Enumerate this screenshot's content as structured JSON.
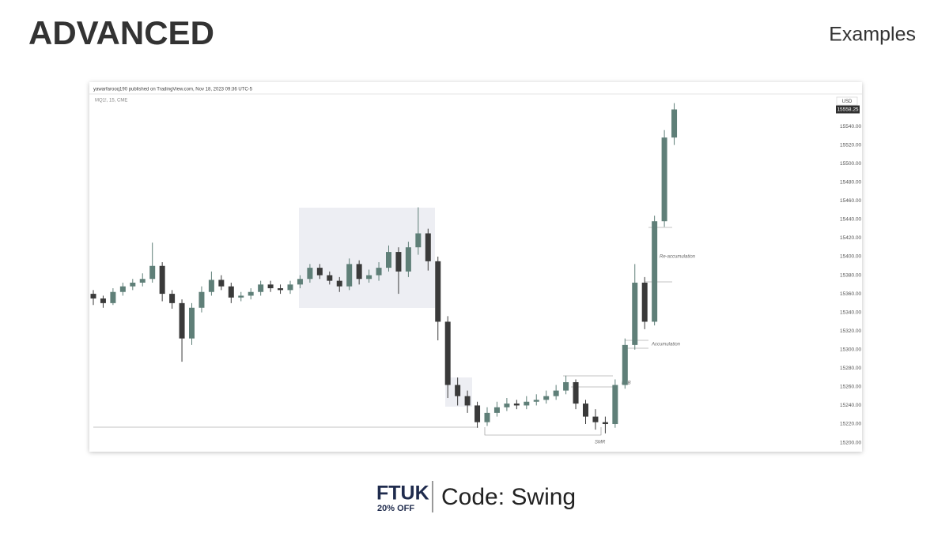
{
  "header": {
    "title": "ADVANCED",
    "section": "Examples"
  },
  "chart_data": {
    "type": "candlestick",
    "source": "yawarfarooq190 published on TradingView.com, Nov 18, 2023 09:36 UTC-5",
    "symbol": "MQ1!, 15, CME",
    "currency": "USD",
    "last_price": 15558.25,
    "up_color": "#5f7f78",
    "down_color": "#3a3a3a",
    "ylim": [
      15192,
      15574
    ],
    "yticks": [
      {
        "value": 15200,
        "label": "15200.00"
      },
      {
        "value": 15220,
        "label": "15220.00"
      },
      {
        "value": 15240,
        "label": "15240.00"
      },
      {
        "value": 15260,
        "label": "15260.00"
      },
      {
        "value": 15280,
        "label": "15280.00"
      },
      {
        "value": 15300,
        "label": "15300.00"
      },
      {
        "value": 15320,
        "label": "15320.00"
      },
      {
        "value": 15340,
        "label": "15340.00"
      },
      {
        "value": 15360,
        "label": "15360.00"
      },
      {
        "value": 15380,
        "label": "15380.00"
      },
      {
        "value": 15400,
        "label": "15400.00"
      },
      {
        "value": 15420,
        "label": "15420.00"
      },
      {
        "value": 15440,
        "label": "15440.00"
      },
      {
        "value": 15460,
        "label": "15460.00"
      },
      {
        "value": 15480,
        "label": "15480.00"
      },
      {
        "value": 15500,
        "label": "15500.00"
      },
      {
        "value": 15520,
        "label": "15520.00"
      },
      {
        "value": 15540,
        "label": "15540.00"
      }
    ],
    "open": [
      15360,
      15355,
      15350,
      15362,
      15368,
      15372,
      15376,
      15390,
      15360,
      15350,
      15312,
      15345,
      15362,
      15375,
      15368,
      15356,
      15358,
      15362,
      15370,
      15366,
      15364,
      15370,
      15376,
      15388,
      15380,
      15374,
      15368,
      15392,
      15376,
      15380,
      15388,
      15405,
      15384,
      15410,
      15425,
      15395,
      15330,
      15262,
      15250,
      15240,
      15222,
      15232,
      15238,
      15242,
      15240,
      15244,
      15246,
      15250,
      15256,
      15265,
      15242,
      15228,
      15222,
      15220,
      15262,
      15305,
      15372,
      15330,
      15438,
      15528
    ],
    "high": [
      15364,
      15358,
      15366,
      15372,
      15376,
      15382,
      15415,
      15394,
      15364,
      15354,
      15350,
      15368,
      15384,
      15380,
      15372,
      15362,
      15366,
      15374,
      15374,
      15370,
      15374,
      15380,
      15392,
      15392,
      15384,
      15378,
      15398,
      15396,
      15386,
      15394,
      15412,
      15410,
      15416,
      15453,
      15430,
      15400,
      15336,
      15270,
      15256,
      15244,
      15238,
      15244,
      15248,
      15246,
      15250,
      15252,
      15256,
      15262,
      15272,
      15268,
      15246,
      15236,
      15228,
      15268,
      15312,
      15392,
      15378,
      15444,
      15536,
      15565
    ],
    "low": [
      15348,
      15345,
      15348,
      15358,
      15364,
      15368,
      15372,
      15352,
      15344,
      15287,
      15305,
      15340,
      15358,
      15364,
      15350,
      15352,
      15354,
      15358,
      15362,
      15360,
      15360,
      15366,
      15372,
      15376,
      15370,
      15362,
      15364,
      15370,
      15372,
      15374,
      15384,
      15360,
      15378,
      15402,
      15385,
      15310,
      15248,
      15240,
      15232,
      15216,
      15218,
      15228,
      15234,
      15236,
      15236,
      15240,
      15242,
      15246,
      15252,
      15236,
      15220,
      15214,
      15210,
      15216,
      15258,
      15300,
      15322,
      15326,
      15432,
      15520
    ],
    "close": [
      15355,
      15350,
      15362,
      15368,
      15372,
      15376,
      15390,
      15360,
      15350,
      15312,
      15345,
      15362,
      15375,
      15368,
      15356,
      15358,
      15362,
      15370,
      15366,
      15364,
      15370,
      15376,
      15388,
      15380,
      15374,
      15368,
      15392,
      15376,
      15380,
      15388,
      15405,
      15384,
      15410,
      15425,
      15395,
      15330,
      15262,
      15250,
      15240,
      15222,
      15232,
      15238,
      15242,
      15240,
      15244,
      15246,
      15250,
      15256,
      15265,
      15242,
      15228,
      15222,
      15220,
      15262,
      15305,
      15372,
      15330,
      15438,
      15528,
      15558.25
    ],
    "annotations": [
      "Re-accumulation",
      "Accumulation",
      "LRB",
      "SMR"
    ]
  },
  "footer": {
    "brand": "FTUK",
    "discount": "20% OFF",
    "code": "Code: Swing"
  }
}
